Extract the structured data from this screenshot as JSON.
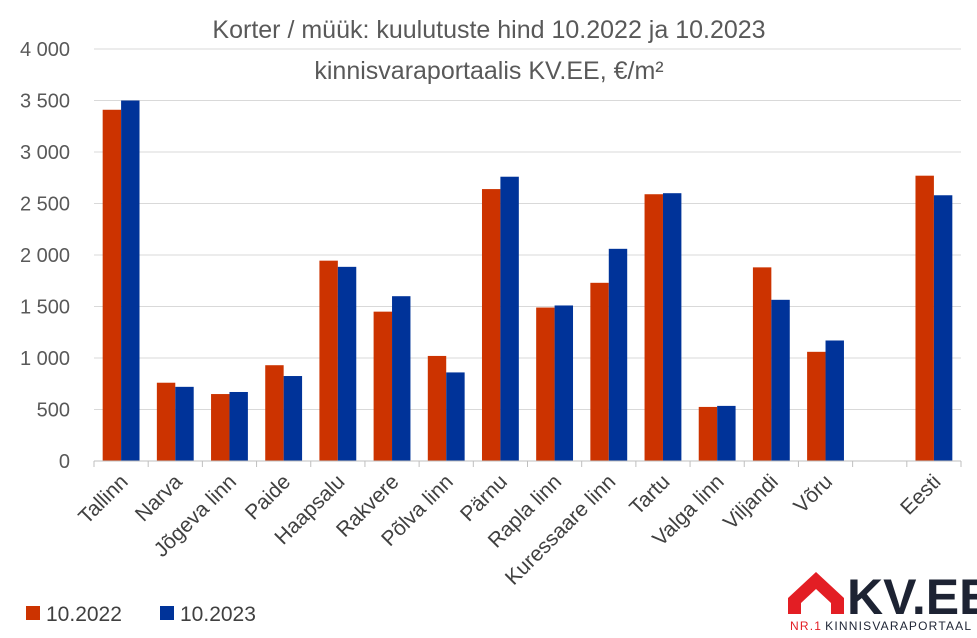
{
  "chart_data": {
    "type": "bar",
    "title": "Korter / müük: kuulutuste hind 10.2022 ja 10.2023",
    "subtitle": "kinnisvaraportaalis KV.EE, €/m²",
    "categories": [
      "Tallinn",
      "Narva",
      "Jõgeva linn",
      "Paide",
      "Haapsalu",
      "Rakvere",
      "Põlva linn",
      "Pärnu",
      "Rapla linn",
      "Kuressaare linn",
      "Tartu",
      "Valga linn",
      "Viljandi",
      "Võru",
      "",
      "Eesti"
    ],
    "series": [
      {
        "name": "10.2022",
        "color": "#cc3300",
        "values": [
          3410,
          760,
          650,
          930,
          1945,
          1450,
          1020,
          2640,
          1490,
          1730,
          2590,
          525,
          1880,
          1060,
          null,
          2770
        ]
      },
      {
        "name": "10.2023",
        "color": "#003399",
        "values": [
          3500,
          720,
          670,
          825,
          1885,
          1600,
          860,
          2760,
          1510,
          2060,
          2600,
          535,
          1565,
          1170,
          null,
          2580
        ]
      }
    ],
    "y_ticks": [
      "0",
      "500",
      "1 000",
      "1 500",
      "2 000",
      "2 500",
      "3 000",
      "3 500",
      "4 000"
    ],
    "ylim": [
      0,
      4000
    ],
    "grid": true,
    "legend_position": "bottom-left"
  },
  "logo": {
    "name": "KV.EE",
    "tagline_prefix": "NR.1",
    "tagline": "KINNISVARAPORTAAL",
    "house_color": "#e31e24",
    "text_color": "#1d2333"
  }
}
